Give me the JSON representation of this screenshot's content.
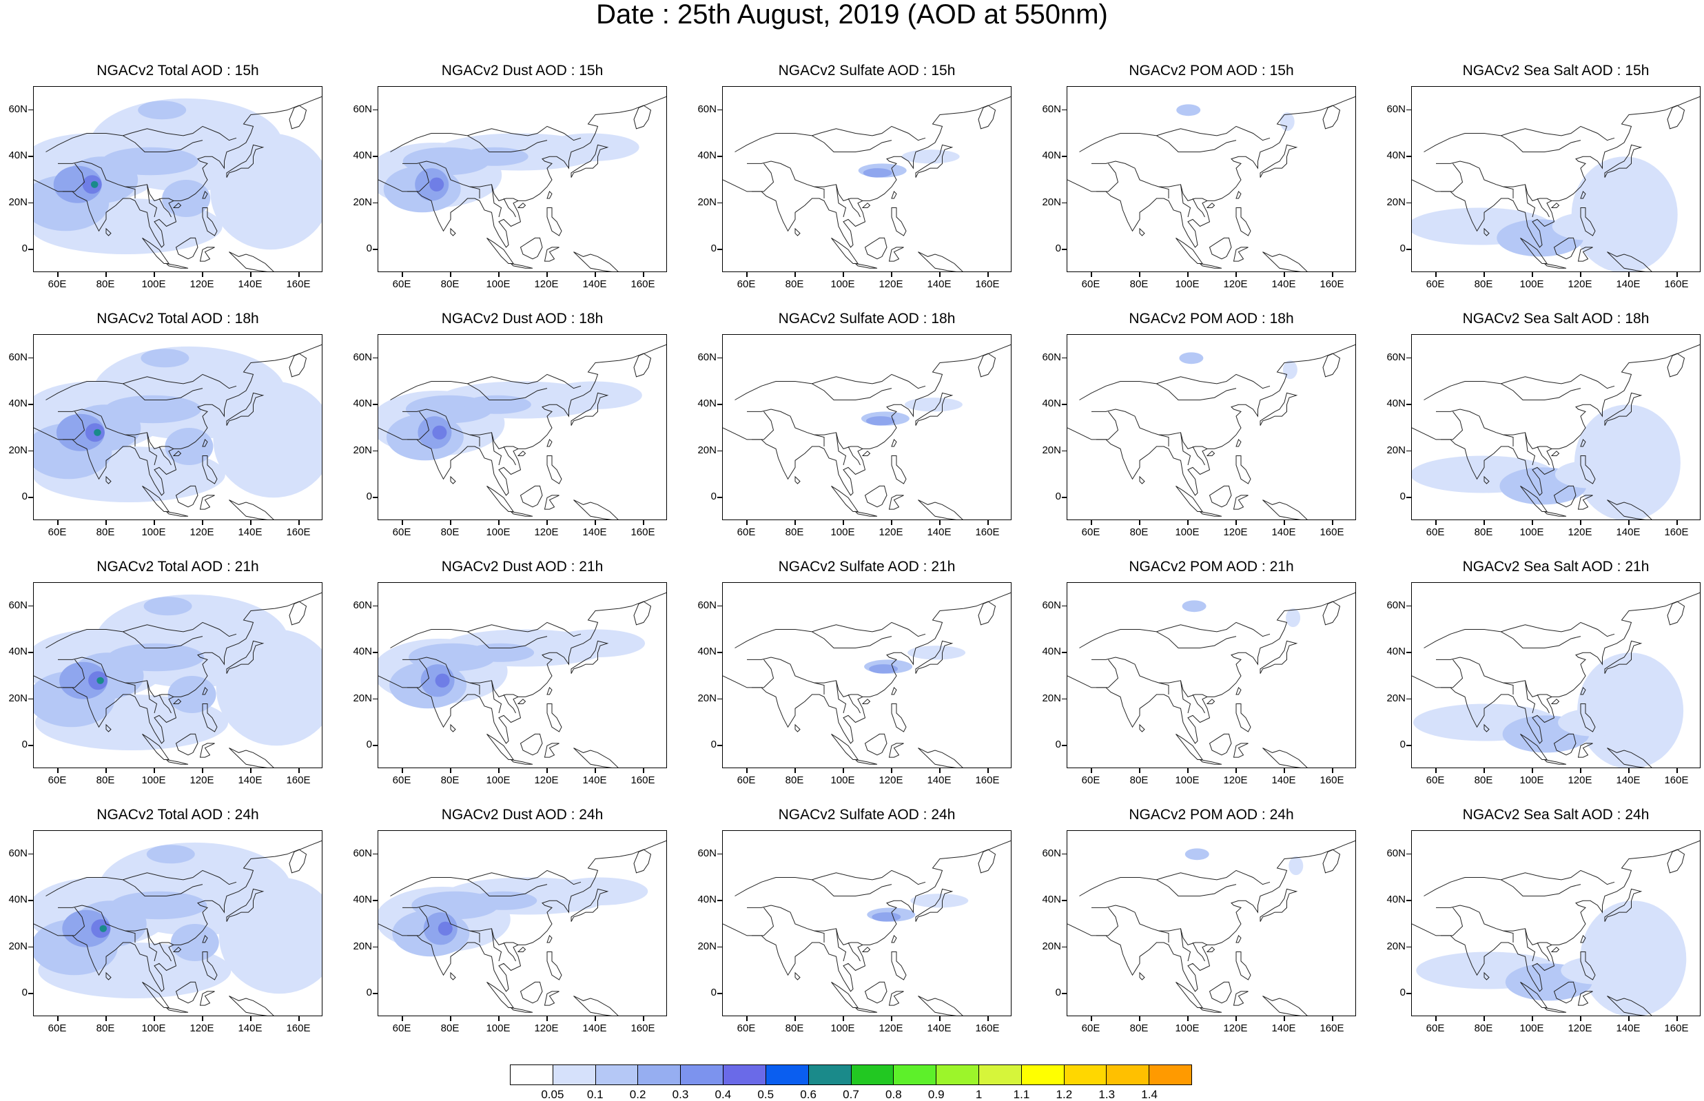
{
  "title": "Date : 25th August, 2019 (AOD at 550nm)",
  "axes": {
    "lat_ticks": [
      "60N",
      "40N",
      "20N",
      "0"
    ],
    "lon_ticks": [
      "60E",
      "80E",
      "100E",
      "120E",
      "140E",
      "160E"
    ]
  },
  "colors": {
    "light": "#d6e1fb",
    "medium": "#b5c8f6",
    "strong": "#8fa6ee",
    "dark": "#6f7ee6",
    "peak": "#1a8a8a",
    "coast": "#222222"
  },
  "panels": [
    [
      {
        "title": "NGACv2 Total AOD : 15h",
        "kind": "total"
      },
      {
        "title": "NGACv2 Dust AOD : 15h",
        "kind": "dust"
      },
      {
        "title": "NGACv2 Sulfate AOD : 15h",
        "kind": "sulfate"
      },
      {
        "title": "NGACv2 POM AOD : 15h",
        "kind": "pom"
      },
      {
        "title": "NGACv2 Sea Salt AOD : 15h",
        "kind": "seasalt"
      }
    ],
    [
      {
        "title": "NGACv2 Total AOD : 18h",
        "kind": "total"
      },
      {
        "title": "NGACv2 Dust AOD : 18h",
        "kind": "dust"
      },
      {
        "title": "NGACv2 Sulfate AOD : 18h",
        "kind": "sulfate"
      },
      {
        "title": "NGACv2 POM AOD : 18h",
        "kind": "pom"
      },
      {
        "title": "NGACv2 Sea Salt AOD : 18h",
        "kind": "seasalt"
      }
    ],
    [
      {
        "title": "NGACv2 Total AOD : 21h",
        "kind": "total"
      },
      {
        "title": "NGACv2 Dust AOD : 21h",
        "kind": "dust"
      },
      {
        "title": "NGACv2 Sulfate AOD : 21h",
        "kind": "sulfate"
      },
      {
        "title": "NGACv2 POM AOD : 21h",
        "kind": "pom"
      },
      {
        "title": "NGACv2 Sea Salt AOD : 21h",
        "kind": "seasalt"
      }
    ],
    [
      {
        "title": "NGACv2 Total AOD : 24h",
        "kind": "total"
      },
      {
        "title": "NGACv2 Dust AOD : 24h",
        "kind": "dust"
      },
      {
        "title": "NGACv2 Sulfate AOD : 24h",
        "kind": "sulfate"
      },
      {
        "title": "NGACv2 POM AOD : 24h",
        "kind": "pom"
      },
      {
        "title": "NGACv2 Sea Salt  AOD : 24h",
        "kind": "seasalt"
      }
    ]
  ],
  "colorbar": {
    "colors": [
      "#ffffff",
      "#d6e1fb",
      "#b5c8f6",
      "#96aef1",
      "#7c93ee",
      "#6a6ae8",
      "#0a5ef0",
      "#1a8a8a",
      "#22c822",
      "#5df02a",
      "#9cf52a",
      "#d6f53a",
      "#ffff00",
      "#ffd700",
      "#ffc000",
      "#ff9a00",
      "#ff6a00",
      "#ff2a1a"
    ],
    "labels": [
      "0.05",
      "0.1",
      "0.2",
      "0.3",
      "0.4",
      "0.5",
      "0.6",
      "0.7",
      "0.8",
      "0.9",
      "1",
      "1.1",
      "1.2",
      "1.3",
      "1.4"
    ]
  }
}
